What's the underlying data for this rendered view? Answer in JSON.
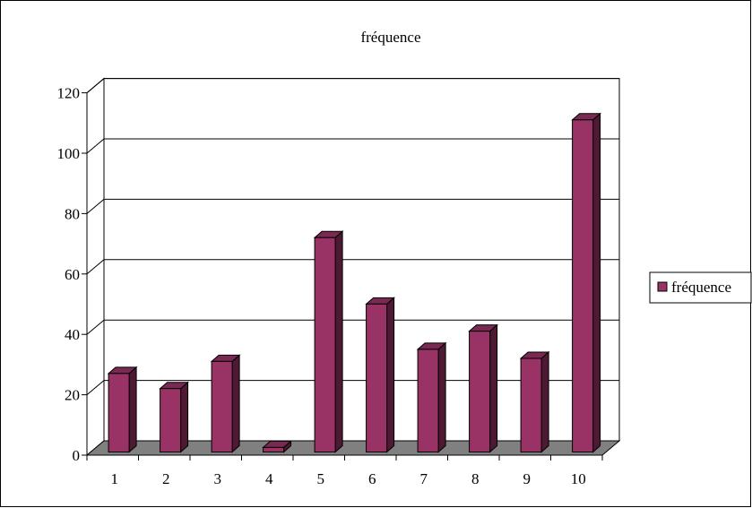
{
  "chart_data": {
    "type": "bar",
    "style": "3d-column",
    "title": "fréquence",
    "xlabel": "",
    "ylabel": "",
    "categories": [
      "1",
      "2",
      "3",
      "4",
      "5",
      "6",
      "7",
      "8",
      "9",
      "10"
    ],
    "series": [
      {
        "name": "fréquence",
        "values": [
          26,
          21,
          30,
          1.5,
          71,
          49,
          34,
          40,
          31,
          110
        ]
      }
    ],
    "ylim": [
      0,
      120
    ],
    "yticks": [
      "0",
      "20",
      "40",
      "60",
      "80",
      "100",
      "120"
    ],
    "grid": true,
    "legend": "right",
    "colors": {
      "bar_front": "#993366",
      "bar_side": "#4d1933",
      "bar_top": "#7a2952",
      "floor": "#808080",
      "gridline": "#000000"
    }
  }
}
